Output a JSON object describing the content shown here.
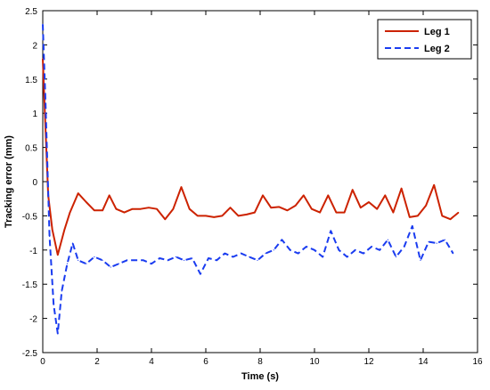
{
  "chart_data": {
    "type": "line",
    "xlabel": "Time (s)",
    "ylabel": "Tracking error (mm)",
    "xlim": [
      0,
      16
    ],
    "ylim": [
      -2.5,
      2.5
    ],
    "xticks": [
      "0",
      "2",
      "4",
      "6",
      "8",
      "10",
      "12",
      "14",
      "16"
    ],
    "yticks": [
      "2.5",
      "2",
      "1.5",
      "1",
      "0.5",
      "0",
      "-0.5",
      "-1",
      "-1.5",
      "-2",
      "-2.5"
    ],
    "grid": false,
    "legend_position": "top-right",
    "series": [
      {
        "name": "Leg 1",
        "color": "#cc2200",
        "style": "solid",
        "x": [
          0.0,
          0.1,
          0.2,
          0.35,
          0.55,
          0.8,
          1.0,
          1.3,
          1.6,
          1.9,
          2.2,
          2.45,
          2.7,
          3.0,
          3.3,
          3.6,
          3.9,
          4.2,
          4.5,
          4.8,
          5.1,
          5.4,
          5.7,
          6.0,
          6.3,
          6.6,
          6.9,
          7.2,
          7.5,
          7.8,
          8.1,
          8.4,
          8.7,
          9.0,
          9.3,
          9.6,
          9.9,
          10.2,
          10.5,
          10.8,
          11.1,
          11.4,
          11.7,
          12.0,
          12.3,
          12.6,
          12.9,
          13.2,
          13.5,
          13.8,
          14.1,
          14.4,
          14.7,
          15.0,
          15.3
        ],
        "y": [
          1.8,
          0.8,
          -0.2,
          -0.7,
          -1.07,
          -0.7,
          -0.45,
          -0.17,
          -0.3,
          -0.42,
          -0.42,
          -0.2,
          -0.4,
          -0.45,
          -0.4,
          -0.4,
          -0.38,
          -0.4,
          -0.55,
          -0.4,
          -0.08,
          -0.4,
          -0.5,
          -0.5,
          -0.52,
          -0.5,
          -0.38,
          -0.5,
          -0.48,
          -0.45,
          -0.2,
          -0.38,
          -0.37,
          -0.42,
          -0.35,
          -0.2,
          -0.4,
          -0.45,
          -0.2,
          -0.45,
          -0.45,
          -0.12,
          -0.38,
          -0.3,
          -0.4,
          -0.2,
          -0.45,
          -0.1,
          -0.52,
          -0.5,
          -0.35,
          -0.05,
          -0.5,
          -0.55,
          -0.45
        ]
      },
      {
        "name": "Leg 2",
        "color": "#1a3cf0",
        "style": "dashed",
        "x": [
          0.0,
          0.1,
          0.25,
          0.4,
          0.55,
          0.7,
          0.9,
          1.1,
          1.3,
          1.6,
          1.9,
          2.2,
          2.5,
          2.8,
          3.1,
          3.4,
          3.7,
          4.0,
          4.3,
          4.6,
          4.9,
          5.2,
          5.5,
          5.8,
          6.1,
          6.4,
          6.7,
          7.0,
          7.3,
          7.6,
          7.9,
          8.2,
          8.5,
          8.8,
          9.1,
          9.4,
          9.7,
          10.0,
          10.3,
          10.6,
          10.9,
          11.2,
          11.5,
          11.8,
          12.1,
          12.4,
          12.7,
          13.0,
          13.3,
          13.6,
          13.9,
          14.2,
          14.5,
          14.8,
          15.1
        ],
        "y": [
          2.3,
          1.2,
          -0.8,
          -1.8,
          -2.22,
          -1.6,
          -1.2,
          -0.9,
          -1.15,
          -1.2,
          -1.1,
          -1.15,
          -1.25,
          -1.2,
          -1.15,
          -1.15,
          -1.15,
          -1.2,
          -1.12,
          -1.15,
          -1.1,
          -1.15,
          -1.12,
          -1.35,
          -1.12,
          -1.15,
          -1.05,
          -1.1,
          -1.05,
          -1.1,
          -1.15,
          -1.05,
          -1.0,
          -0.85,
          -1.0,
          -1.05,
          -0.95,
          -1.0,
          -1.1,
          -0.72,
          -1.0,
          -1.1,
          -1.0,
          -1.05,
          -0.95,
          -1.0,
          -0.85,
          -1.1,
          -0.95,
          -0.65,
          -1.15,
          -0.88,
          -0.9,
          -0.85,
          -1.05
        ]
      }
    ]
  }
}
